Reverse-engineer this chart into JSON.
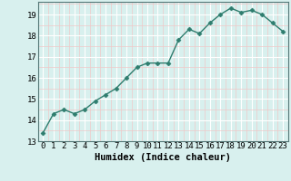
{
  "x": [
    0,
    1,
    2,
    3,
    4,
    5,
    6,
    7,
    8,
    9,
    10,
    11,
    12,
    13,
    14,
    15,
    16,
    17,
    18,
    19,
    20,
    21,
    22,
    23
  ],
  "y": [
    13.4,
    14.3,
    14.5,
    14.3,
    14.5,
    14.9,
    15.2,
    15.5,
    16.0,
    16.5,
    16.7,
    16.7,
    16.7,
    17.8,
    18.3,
    18.1,
    18.6,
    19.0,
    19.3,
    19.1,
    19.2,
    19.0,
    18.6,
    18.2
  ],
  "line_color": "#2e7d6e",
  "marker": "D",
  "markersize": 2.5,
  "linewidth": 1.0,
  "bg_color": "#d8f0ee",
  "grid_major_color": "#ffffff",
  "grid_minor_color": "#f0c8c8",
  "xlabel": "Humidex (Indice chaleur)",
  "xlabel_fontsize": 7.5,
  "tick_fontsize": 6.5,
  "ylim": [
    13,
    19.6
  ],
  "xlim": [
    -0.5,
    23.5
  ],
  "yticks": [
    13,
    14,
    15,
    16,
    17,
    18,
    19
  ],
  "xticks": [
    0,
    1,
    2,
    3,
    4,
    5,
    6,
    7,
    8,
    9,
    10,
    11,
    12,
    13,
    14,
    15,
    16,
    17,
    18,
    19,
    20,
    21,
    22,
    23
  ]
}
